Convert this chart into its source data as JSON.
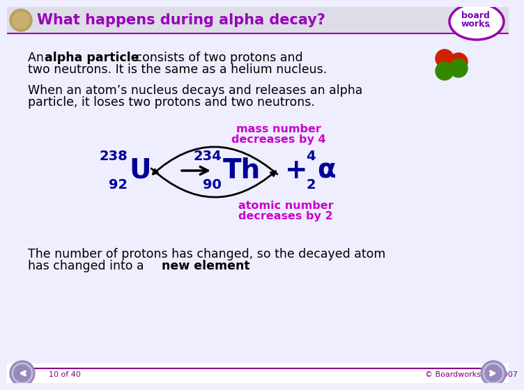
{
  "title": "What happens during alpha decay?",
  "title_color": "white",
  "header_gradient_left": "#CCCCDD",
  "header_gradient_right": "#CCCCDD",
  "header_bg": "#DDDDEE",
  "body_bg": "#EEEEFF",
  "label_color": "#CC00CC",
  "equation_color": "#000099",
  "footer_text": "10 of 40",
  "footer_right": "© Boardworks Ltd 2007",
  "footer_color": "#800080",
  "nav_color": "#7766AA",
  "white": "#FFFFFF",
  "black": "#000000",
  "red_circle": "#CC2200",
  "green_circle": "#338800"
}
